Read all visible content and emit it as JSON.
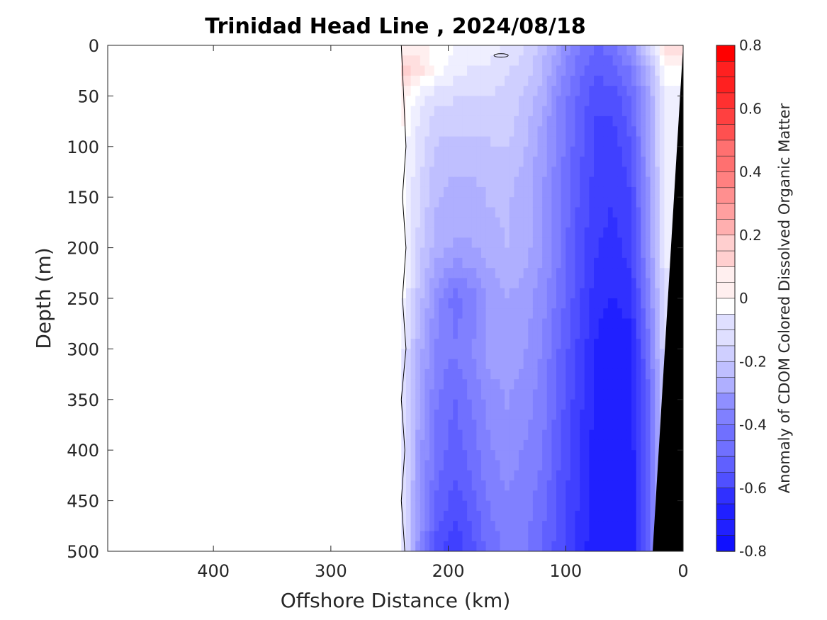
{
  "chart_data": {
    "type": "heatmap",
    "title": "Trinidad Head Line , 2024/08/18",
    "xlabel": "Offshore Distance (km)",
    "ylabel": "Depth (m)",
    "colorbar_label": "Anomaly of CDOM Colored Dissolved Organic Matter",
    "xlim": [
      490,
      0
    ],
    "ylim": [
      0,
      500
    ],
    "x_reversed": true,
    "y_reversed": true,
    "xticks": [
      400,
      300,
      200,
      100,
      0
    ],
    "yticks": [
      0,
      50,
      100,
      150,
      200,
      250,
      300,
      350,
      400,
      450,
      500
    ],
    "clim": [
      -0.8,
      0.8
    ],
    "cbar_ticks": [
      0.8,
      0.6,
      0.4,
      0.2,
      0,
      -0.2,
      -0.4,
      -0.6,
      -0.8
    ],
    "colormap": "blue-white-red",
    "color_low": "#0000ff",
    "color_high": "#ff0000",
    "land_color": "#000000",
    "data_extent_km": [
      0,
      240
    ],
    "distances_km": [
      240,
      225,
      210,
      195,
      180,
      165,
      150,
      135,
      120,
      105,
      90,
      75,
      60,
      45,
      30,
      15
    ],
    "depths_m": [
      0,
      25,
      50,
      75,
      100,
      150,
      200,
      250,
      300,
      350,
      400,
      450,
      500
    ],
    "values": [
      [
        0.05,
        0.05,
        0.0,
        -0.02,
        -0.05,
        -0.05,
        -0.08,
        -0.12,
        -0.2,
        -0.3,
        -0.4,
        -0.48,
        -0.45,
        -0.35,
        -0.15,
        0.1
      ],
      [
        0.15,
        0.1,
        0.0,
        -0.05,
        -0.08,
        -0.08,
        -0.12,
        -0.15,
        -0.22,
        -0.35,
        -0.45,
        -0.52,
        -0.5,
        -0.42,
        -0.25,
        0.0
      ],
      [
        0.05,
        -0.05,
        -0.1,
        -0.12,
        -0.12,
        -0.12,
        -0.15,
        -0.18,
        -0.25,
        -0.38,
        -0.48,
        -0.55,
        -0.55,
        -0.48,
        -0.3,
        -0.05
      ],
      [
        0.05,
        -0.08,
        -0.15,
        -0.15,
        -0.15,
        -0.15,
        -0.15,
        -0.2,
        -0.28,
        -0.4,
        -0.5,
        -0.58,
        -0.58,
        -0.5,
        -0.3,
        -0.05
      ],
      [
        0.0,
        -0.1,
        -0.18,
        -0.2,
        -0.2,
        -0.18,
        -0.18,
        -0.22,
        -0.3,
        -0.4,
        -0.5,
        -0.58,
        -0.6,
        -0.55,
        -0.3,
        -0.05
      ],
      [
        0.0,
        -0.12,
        -0.22,
        -0.25,
        -0.25,
        -0.22,
        -0.22,
        -0.25,
        -0.32,
        -0.42,
        -0.52,
        -0.6,
        -0.62,
        -0.58,
        -0.35,
        -0.05
      ],
      [
        0.05,
        -0.15,
        -0.25,
        -0.28,
        -0.28,
        -0.25,
        -0.22,
        -0.25,
        -0.32,
        -0.42,
        -0.55,
        -0.62,
        -0.65,
        -0.6,
        -0.35,
        -0.05
      ],
      [
        0.0,
        -0.2,
        -0.35,
        -0.45,
        -0.4,
        -0.32,
        -0.28,
        -0.3,
        -0.35,
        -0.45,
        -0.55,
        -0.65,
        -0.68,
        -0.65,
        -0.4,
        -0.1
      ],
      [
        -0.05,
        -0.25,
        -0.38,
        -0.42,
        -0.38,
        -0.3,
        -0.3,
        -0.32,
        -0.38,
        -0.48,
        -0.58,
        -0.68,
        -0.72,
        -0.7,
        -0.45,
        -0.1
      ],
      [
        -0.05,
        -0.28,
        -0.42,
        -0.48,
        -0.42,
        -0.35,
        -0.32,
        -0.35,
        -0.4,
        -0.5,
        -0.6,
        -0.68,
        -0.72,
        -0.7,
        -0.5,
        -0.15
      ],
      [
        -0.05,
        -0.3,
        -0.45,
        -0.5,
        -0.45,
        -0.38,
        -0.35,
        -0.38,
        -0.42,
        -0.52,
        -0.62,
        -0.7,
        -0.72,
        -0.72,
        -0.5,
        -0.15
      ],
      [
        -0.05,
        -0.32,
        -0.48,
        -0.55,
        -0.5,
        -0.42,
        -0.38,
        -0.4,
        -0.45,
        -0.55,
        -0.62,
        -0.7,
        -0.72,
        -0.72,
        -0.5,
        -0.15
      ],
      [
        -0.05,
        -0.35,
        -0.55,
        -0.62,
        -0.55,
        -0.45,
        -0.42,
        -0.42,
        -0.48,
        -0.55,
        -0.65,
        -0.7,
        -0.72,
        -0.72,
        -0.5,
        -0.15
      ]
    ]
  }
}
